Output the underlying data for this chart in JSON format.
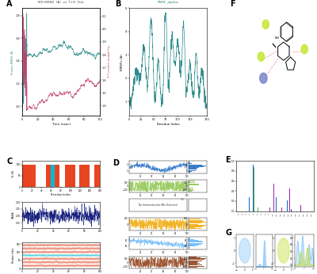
{
  "panel_A": {
    "title": "MD-RMSD  (A)  vs  T+S  Fret",
    "xlabel": "Time (nsec)",
    "ylabel_left": "Protein RMSD (A)",
    "ylabel_right": "T+T contact probability",
    "line1_color": "#2e8b8b",
    "line2_color": "#c0406b"
  },
  "panel_B": {
    "title": "RMSF_alphas",
    "xlabel": "Residue Index",
    "ylabel": "RMSFs (A)",
    "color": "#2e8b8b"
  },
  "panel_C": {
    "bar_color": "#e84422",
    "bar_color2": "#00bcd4",
    "xlabel1": "Residue Index",
    "ylabel1": "% SS",
    "xlabel2": "Time (nsec)",
    "ylabel2": "SASA",
    "ylabel3": "Residue Index"
  },
  "panel_D": {
    "colors": [
      "#1565c0",
      "#8bc34a",
      "#f0a500",
      "#64b5f6",
      "#8b3a0f"
    ],
    "no_hbond_text": "No Intramolecular HBs Detected"
  },
  "panel_E": {
    "bar1_color": "#1565c0",
    "bar2_color": "#4caf50",
    "bar3_color": "#9c27b0"
  },
  "panel_F": {
    "molecule_color": "#2c2c2c",
    "node_yellow": "#c5e832",
    "node_blue": "#7986cb",
    "link_color": "#f48fb1"
  },
  "panel_G": {
    "ellipse_color": "#90caf9",
    "green_color": "#c5e040",
    "blue_color": "#90caf9"
  }
}
